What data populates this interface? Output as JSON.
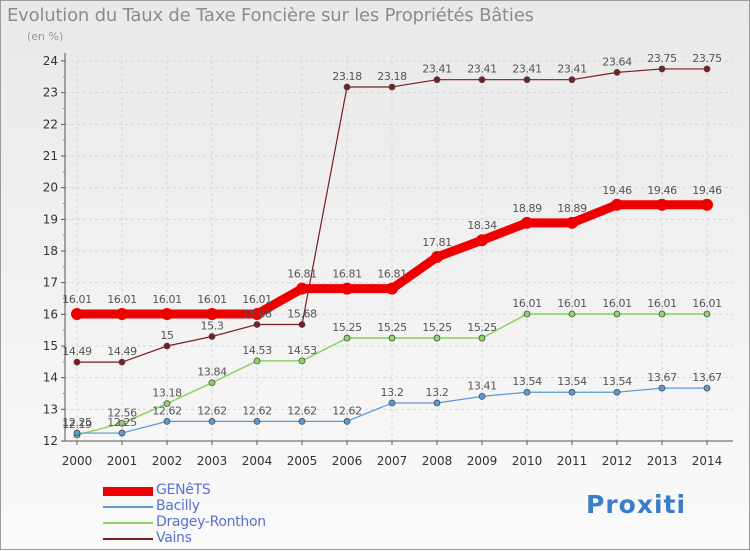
{
  "title": "Evolution du Taux de Taxe Foncière sur les Propriétés Bâties",
  "subtitle": "(en %)",
  "brand": "Proxiti",
  "chart_data": {
    "type": "line",
    "title": "Evolution du Taux de Taxe Foncière sur les Propriétés Bâties",
    "ylabel": "(en %)",
    "x": [
      "2000",
      "2001",
      "2002",
      "2003",
      "2004",
      "2005",
      "2006",
      "2007",
      "2008",
      "2009",
      "2010",
      "2011",
      "2012",
      "2013",
      "2014"
    ],
    "ylim": [
      12,
      24
    ],
    "yticks": [
      12,
      13,
      14,
      15,
      16,
      17,
      18,
      19,
      20,
      21,
      22,
      23,
      24
    ],
    "legend_position": "bottom-left",
    "series": [
      {
        "name": "GENêTS",
        "color": "#ee0000",
        "values": [
          16.01,
          16.01,
          16.01,
          16.01,
          16.01,
          16.81,
          16.81,
          16.81,
          17.81,
          18.34,
          18.89,
          18.89,
          19.46,
          19.46,
          19.46
        ]
      },
      {
        "name": "Bacilly",
        "color": "#5a9ad6",
        "values": [
          12.25,
          12.25,
          12.62,
          12.62,
          12.62,
          12.62,
          12.62,
          13.2,
          13.2,
          13.41,
          13.54,
          13.54,
          13.54,
          13.67,
          13.67
        ]
      },
      {
        "name": "Dragey-Ronthon",
        "color": "#8fd46a",
        "values": [
          12.19,
          12.56,
          13.18,
          13.84,
          14.53,
          14.53,
          15.25,
          15.25,
          15.25,
          15.25,
          16.01,
          16.01,
          16.01,
          16.01,
          16.01
        ]
      },
      {
        "name": "Vains",
        "color": "#7a1e1e",
        "values": [
          14.49,
          14.49,
          15,
          15.3,
          15.68,
          15.68,
          23.18,
          23.18,
          23.41,
          23.41,
          23.41,
          23.41,
          23.64,
          23.75,
          23.75
        ]
      }
    ]
  }
}
